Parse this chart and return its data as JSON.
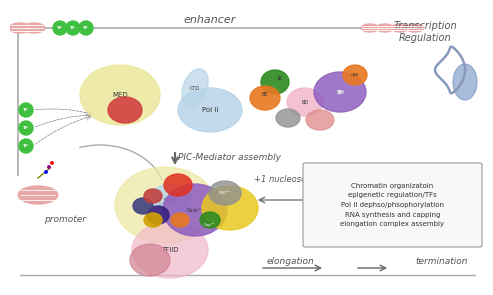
{
  "bg_color": "#ffffff",
  "text_color": "#555555",
  "box_text": "Chromatin organizatoin\nepigenetic regulation/TFs\nPol II dephso/phsophorylation\nRNA synthesis and capping\nelongation complex assembly",
  "labels": {
    "enhancer": "enhancer",
    "transcription_regulation": "Transcription\nRegulation",
    "pic_mediator": "PIC-Mediator assembly",
    "plus1_nucleosome": "+1 nucleosome",
    "regulation": "regulation",
    "promoter": "promoter",
    "elongation": "elongation",
    "termination": "termination"
  },
  "colors": {
    "med_blob": "#ede8a0",
    "pol_ii": "#b8d4e8",
    "orange_blob": "#e87820",
    "green_dark": "#2e8b20",
    "red_blob": "#d04040",
    "pink_blob": "#f0b8c8",
    "purple_blob": "#9060c0",
    "gray_blob": "#909090",
    "yellow_bright": "#e8c820",
    "nucleosome_pink": "#e8a8a8",
    "dna_gray": "#aaaaaa",
    "tf_green": "#40c040",
    "box_bg": "#f8f8f8",
    "box_border": "#999999",
    "arrow_color": "#666666",
    "salmon": "#e09090",
    "teal": "#60b0b0",
    "lavender": "#c8a8e0"
  }
}
